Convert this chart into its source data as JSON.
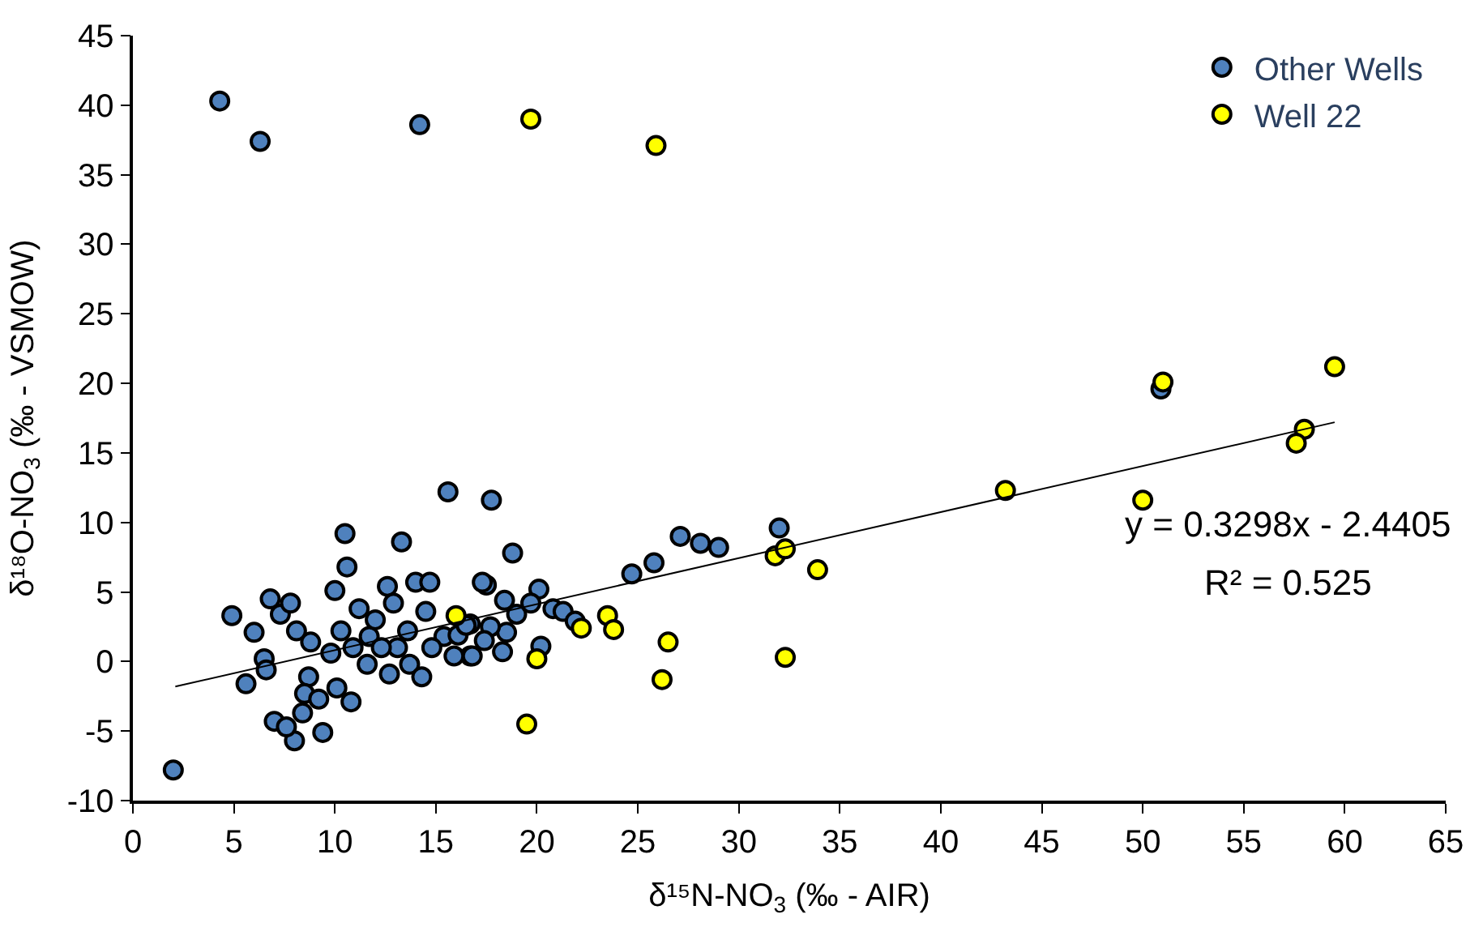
{
  "chart_data": {
    "type": "scatter",
    "xlabel": "δ¹⁵N-NO$_{3}$ (‰ - AIR)",
    "ylabel": "δ¹⁸O-NO$_{3}$ (‰ - VSMOW)",
    "xlim": [
      0,
      65
    ],
    "xticks": [
      0,
      5,
      10,
      15,
      20,
      25,
      30,
      35,
      40,
      45,
      50,
      55,
      60,
      65
    ],
    "ylim": [
      -10,
      45
    ],
    "yticks": [
      -10,
      -5,
      0,
      5,
      10,
      15,
      20,
      25,
      30,
      35,
      40,
      45
    ],
    "legend": "top right",
    "marker": "circle",
    "annotations": [
      "y = 0.3298x - 2.4405",
      "R² = 0.525"
    ],
    "series": [
      {
        "name": "Other Wells",
        "color": "#4f81bd",
        "x": [
          4.3,
          6.3,
          14.2,
          50.9,
          2.0,
          15.6,
          17.75,
          18.8,
          27.1,
          28.1,
          29.0,
          32.0,
          25.8,
          24.7,
          17.5,
          20.1,
          18.4,
          19.7,
          19.0,
          20.8,
          21.3,
          21.9,
          20.2,
          18.3,
          18.5,
          17.7,
          16.7,
          15.9,
          15.4,
          16.1,
          16.7,
          17.4,
          4.9,
          5.6,
          7.0,
          8.0,
          9.4,
          10.5,
          10.6,
          10.0,
          13.3,
          6.8,
          6.0,
          6.5,
          6.6,
          7.3,
          8.1,
          7.8,
          8.8,
          8.7,
          8.5,
          8.4,
          10.1,
          10.8,
          9.8,
          10.3,
          11.2,
          11.7,
          12.6,
          12.9,
          13.1,
          12.7,
          13.7,
          14.3,
          14.0,
          14.7,
          14.5,
          13.6,
          16.8,
          17.3,
          10.9,
          12.0,
          9.2,
          7.6,
          12.3,
          11.6,
          14.8,
          16.5
        ],
        "values": [
          40.3,
          37.4,
          38.6,
          19.6,
          -7.8,
          12.2,
          11.6,
          7.8,
          9.0,
          8.5,
          8.2,
          9.6,
          7.1,
          6.3,
          5.5,
          5.2,
          4.4,
          4.2,
          3.4,
          3.8,
          3.6,
          2.9,
          1.1,
          0.7,
          2.1,
          2.5,
          0.4,
          0.4,
          1.8,
          1.9,
          2.7,
          1.5,
          3.3,
          -1.6,
          -4.3,
          -5.7,
          -5.1,
          9.2,
          6.8,
          5.1,
          8.6,
          4.5,
          2.1,
          0.2,
          -0.6,
          3.4,
          2.2,
          4.2,
          1.4,
          -1.1,
          -2.3,
          -3.7,
          -1.9,
          -2.9,
          0.6,
          2.2,
          3.8,
          1.8,
          5.4,
          4.2,
          1.0,
          -0.9,
          -0.2,
          -1.1,
          5.7,
          5.7,
          3.6,
          2.2,
          0.4,
          5.7,
          1.0,
          3.0,
          -2.7,
          -4.7,
          1.0,
          -0.2,
          1.0,
          2.6
        ]
      },
      {
        "name": "Well 22",
        "color": "#ffff00",
        "x": [
          19.7,
          25.9,
          51.0,
          59.5,
          58.0,
          57.6,
          50.0,
          43.2,
          31.8,
          32.3,
          33.9,
          32.3,
          26.2,
          26.5,
          23.5,
          23.8,
          22.2,
          20.0,
          19.5,
          16.0
        ],
        "values": [
          39.0,
          37.1,
          20.1,
          21.2,
          16.7,
          15.7,
          11.6,
          12.3,
          7.6,
          8.1,
          6.6,
          0.3,
          -1.3,
          1.4,
          3.3,
          2.3,
          2.4,
          0.2,
          -4.5,
          3.3
        ]
      },
      {
        "type": "line",
        "marker": "none",
        "color": "#000000",
        "x": [
          2.1,
          59.5
        ],
        "values": [
          -1.8,
          17.2
        ]
      }
    ]
  }
}
